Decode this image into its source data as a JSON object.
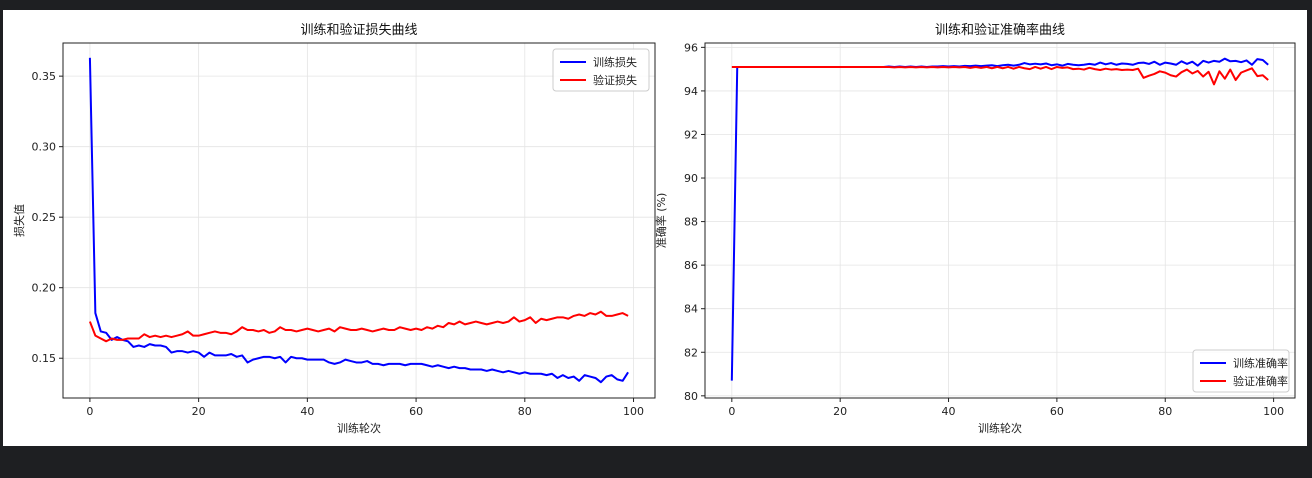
{
  "chart_data": [
    {
      "type": "line",
      "title": "训练和验证损失曲线",
      "xlabel": "训练轮次",
      "ylabel": "损失值",
      "xlim": [
        -4.95,
        103.95
      ],
      "ylim": [
        0.1218,
        0.3735
      ],
      "xticks": [
        0,
        20,
        40,
        60,
        80,
        100
      ],
      "yticks": [
        0.15,
        0.2,
        0.25,
        0.3,
        0.35
      ],
      "ytick_labels": [
        "0.15",
        "0.20",
        "0.25",
        "0.30",
        "0.35"
      ],
      "grid": true,
      "legend_position": "top-right",
      "series": [
        {
          "name": "训练损失",
          "color": "#0000ff",
          "values": [
            0.363,
            0.182,
            0.169,
            0.168,
            0.163,
            0.165,
            0.163,
            0.162,
            0.158,
            0.159,
            0.158,
            0.16,
            0.159,
            0.159,
            0.158,
            0.154,
            0.155,
            0.155,
            0.154,
            0.155,
            0.154,
            0.151,
            0.154,
            0.152,
            0.152,
            0.152,
            0.153,
            0.151,
            0.152,
            0.147,
            0.149,
            0.15,
            0.151,
            0.151,
            0.15,
            0.151,
            0.147,
            0.151,
            0.15,
            0.15,
            0.149,
            0.149,
            0.149,
            0.149,
            0.147,
            0.146,
            0.147,
            0.149,
            0.148,
            0.147,
            0.147,
            0.148,
            0.146,
            0.146,
            0.145,
            0.146,
            0.146,
            0.146,
            0.145,
            0.146,
            0.146,
            0.146,
            0.145,
            0.144,
            0.145,
            0.144,
            0.143,
            0.144,
            0.143,
            0.143,
            0.142,
            0.142,
            0.142,
            0.141,
            0.142,
            0.141,
            0.14,
            0.141,
            0.14,
            0.139,
            0.14,
            0.139,
            0.139,
            0.139,
            0.138,
            0.139,
            0.136,
            0.138,
            0.136,
            0.137,
            0.134,
            0.138,
            0.137,
            0.136,
            0.133,
            0.137,
            0.138,
            0.135,
            0.134,
            0.14
          ]
        },
        {
          "name": "验证损失",
          "color": "#ff0000",
          "values": [
            0.176,
            0.166,
            0.164,
            0.162,
            0.164,
            0.163,
            0.163,
            0.164,
            0.164,
            0.164,
            0.167,
            0.165,
            0.166,
            0.165,
            0.166,
            0.165,
            0.166,
            0.167,
            0.169,
            0.166,
            0.166,
            0.167,
            0.168,
            0.169,
            0.168,
            0.168,
            0.167,
            0.169,
            0.172,
            0.17,
            0.17,
            0.169,
            0.17,
            0.168,
            0.169,
            0.172,
            0.17,
            0.17,
            0.169,
            0.17,
            0.171,
            0.17,
            0.169,
            0.17,
            0.171,
            0.169,
            0.172,
            0.171,
            0.17,
            0.17,
            0.171,
            0.17,
            0.169,
            0.17,
            0.171,
            0.17,
            0.17,
            0.172,
            0.171,
            0.17,
            0.171,
            0.17,
            0.172,
            0.171,
            0.173,
            0.172,
            0.175,
            0.174,
            0.176,
            0.174,
            0.175,
            0.176,
            0.175,
            0.174,
            0.175,
            0.176,
            0.175,
            0.176,
            0.179,
            0.176,
            0.177,
            0.179,
            0.175,
            0.178,
            0.177,
            0.178,
            0.179,
            0.179,
            0.178,
            0.18,
            0.181,
            0.18,
            0.182,
            0.181,
            0.183,
            0.18,
            0.18,
            0.181,
            0.182,
            0.18
          ]
        }
      ]
    },
    {
      "type": "line",
      "title": "训练和验证准确率曲线",
      "xlabel": "训练轮次",
      "ylabel": "准确率 (%)",
      "xlim": [
        -4.95,
        103.95
      ],
      "ylim": [
        79.9,
        96.2
      ],
      "xticks": [
        0,
        20,
        40,
        60,
        80,
        100
      ],
      "yticks": [
        80,
        82,
        84,
        86,
        88,
        90,
        92,
        94,
        96
      ],
      "grid": true,
      "legend_position": "bottom-right",
      "series": [
        {
          "name": "训练准确率",
          "color": "#0000ff",
          "values": [
            80.7,
            95.1,
            95.1,
            95.1,
            95.1,
            95.1,
            95.1,
            95.1,
            95.1,
            95.1,
            95.1,
            95.1,
            95.1,
            95.1,
            95.1,
            95.1,
            95.1,
            95.1,
            95.1,
            95.1,
            95.1,
            95.1,
            95.1,
            95.1,
            95.1,
            95.1,
            95.1,
            95.1,
            95.1,
            95.12,
            95.1,
            95.12,
            95.1,
            95.12,
            95.1,
            95.12,
            95.1,
            95.12,
            95.12,
            95.14,
            95.12,
            95.14,
            95.12,
            95.15,
            95.14,
            95.16,
            95.14,
            95.16,
            95.18,
            95.14,
            95.18,
            95.2,
            95.16,
            95.2,
            95.28,
            95.22,
            95.25,
            95.22,
            95.26,
            95.18,
            95.22,
            95.16,
            95.24,
            95.2,
            95.18,
            95.2,
            95.24,
            95.2,
            95.3,
            95.22,
            95.28,
            95.2,
            95.26,
            95.24,
            95.2,
            95.28,
            95.3,
            95.24,
            95.34,
            95.2,
            95.3,
            95.26,
            95.2,
            95.36,
            95.24,
            95.34,
            95.16,
            95.38,
            95.3,
            95.38,
            95.34,
            95.48,
            95.36,
            95.38,
            95.32,
            95.4,
            95.2,
            95.46,
            95.42,
            95.2
          ]
        },
        {
          "name": "验证准确率",
          "color": "#ff0000",
          "values": [
            95.1,
            95.1,
            95.1,
            95.1,
            95.1,
            95.1,
            95.1,
            95.1,
            95.1,
            95.1,
            95.1,
            95.1,
            95.1,
            95.1,
            95.1,
            95.1,
            95.1,
            95.1,
            95.1,
            95.1,
            95.1,
            95.1,
            95.1,
            95.1,
            95.1,
            95.1,
            95.1,
            95.1,
            95.1,
            95.1,
            95.08,
            95.1,
            95.08,
            95.1,
            95.08,
            95.1,
            95.08,
            95.1,
            95.08,
            95.1,
            95.08,
            95.1,
            95.08,
            95.1,
            95.06,
            95.1,
            95.06,
            95.1,
            95.04,
            95.1,
            95.04,
            95.1,
            95.02,
            95.1,
            95.04,
            95.0,
            95.1,
            95.02,
            95.1,
            95.0,
            95.1,
            95.06,
            95.08,
            95.0,
            95.02,
            94.98,
            95.06,
            95.0,
            94.96,
            95.02,
            94.98,
            95.0,
            94.96,
            94.98,
            94.96,
            95.02,
            94.6,
            94.7,
            94.78,
            94.9,
            94.84,
            94.72,
            94.66,
            94.86,
            94.98,
            94.8,
            94.92,
            94.66,
            94.88,
            94.3,
            94.9,
            94.56,
            94.98,
            94.5,
            94.84,
            94.94,
            95.04,
            94.68,
            94.72,
            94.5
          ]
        }
      ]
    }
  ]
}
